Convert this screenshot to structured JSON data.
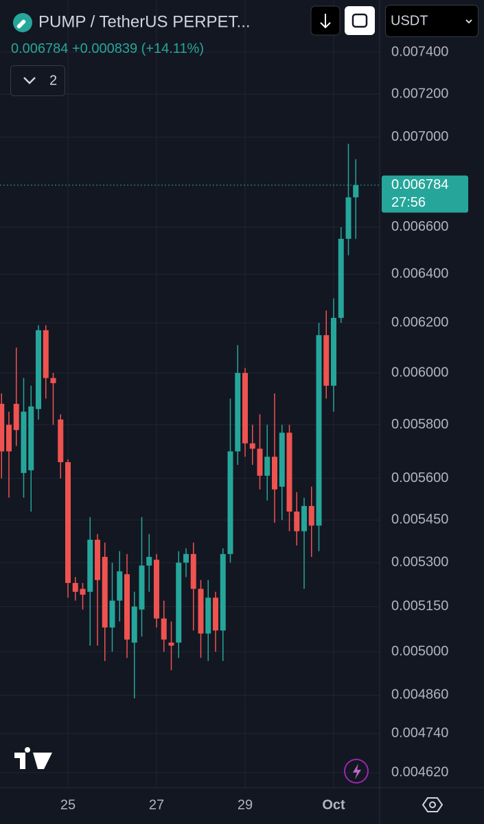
{
  "header": {
    "title": "PUMP / TetherUS PERPET...",
    "price": 0.006784,
    "change": "+0.000839",
    "change_pct": "(+14.11%)",
    "indicators": 2,
    "currency": "USDT",
    "countdown": "27:56"
  },
  "chart_data": {
    "type": "candlestick",
    "log_scale": true,
    "grid": true,
    "up_color": "#26a69a",
    "down_color": "#ef5350",
    "categories": [
      null,
      null,
      null,
      null,
      null,
      null,
      null,
      null,
      null,
      "25",
      null,
      null,
      null,
      null,
      null,
      null,
      null,
      null,
      null,
      null,
      null,
      "27",
      null,
      null,
      null,
      null,
      null,
      null,
      null,
      null,
      null,
      null,
      null,
      "29",
      null,
      null,
      null,
      null,
      null,
      null,
      null,
      null,
      null,
      null,
      null,
      "Oct",
      null,
      null,
      null
    ],
    "open": [
      0.00588,
      0.0058,
      0.00588,
      0.00562,
      0.00563,
      0.00586,
      0.00617,
      0.00598,
      0.00582,
      0.00566,
      0.00523,
      0.00521,
      0.0052,
      0.00538,
      0.00532,
      0.00508,
      0.00517,
      0.00526,
      0.00503,
      0.00514,
      0.00529,
      0.00531,
      0.00511,
      0.00503,
      0.00503,
      0.0053,
      0.00533,
      0.00521,
      0.00506,
      0.00518,
      0.00507,
      0.00533,
      0.0057,
      0.006,
      0.00573,
      0.00571,
      0.00561,
      0.00568,
      0.00557,
      0.00577,
      0.00548,
      0.00541,
      0.0055,
      0.00543,
      0.00615,
      0.00595,
      0.00622,
      0.00655,
      0.00673
    ],
    "high": [
      0.00592,
      0.00585,
      0.0061,
      0.00598,
      0.00595,
      0.00619,
      0.00619,
      0.006,
      0.00584,
      0.00567,
      0.00525,
      0.00523,
      0.00546,
      0.0054,
      0.00537,
      0.0053,
      0.00534,
      0.00533,
      0.0052,
      0.00546,
      0.0054,
      0.00533,
      0.00517,
      0.0051,
      0.00534,
      0.00535,
      0.00537,
      0.00524,
      0.00524,
      0.0052,
      0.00535,
      0.0059,
      0.00611,
      0.00602,
      0.0058,
      0.00584,
      0.0058,
      0.00592,
      0.0058,
      0.0058,
      0.00555,
      0.00553,
      0.00557,
      0.0062,
      0.00625,
      0.0063,
      0.0066,
      0.00697,
      0.0069
    ],
    "low": [
      0.0056,
      0.00553,
      0.00572,
      0.00553,
      0.00548,
      0.00582,
      0.0059,
      0.0058,
      0.0056,
      0.00518,
      0.00517,
      0.00514,
      0.00502,
      0.00502,
      0.00497,
      0.005,
      0.0051,
      0.00498,
      0.00485,
      0.00505,
      0.0052,
      0.00508,
      0.005,
      0.00494,
      0.00498,
      0.00525,
      0.00507,
      0.00498,
      0.00497,
      0.005,
      0.00497,
      0.0053,
      0.00565,
      0.00568,
      0.00565,
      0.00556,
      0.00552,
      0.00544,
      0.00545,
      0.00541,
      0.00536,
      0.00521,
      0.00532,
      0.00534,
      0.0059,
      0.00585,
      0.0062,
      0.00648,
      0.00655
    ],
    "close": [
      0.0057,
      0.0057,
      0.00578,
      0.00585,
      0.00587,
      0.00617,
      0.00598,
      0.00596,
      0.00566,
      0.00523,
      0.0052,
      0.00519,
      0.00538,
      0.00524,
      0.00508,
      0.00517,
      0.00527,
      0.00504,
      0.00515,
      0.00529,
      0.00532,
      0.00511,
      0.00504,
      0.00502,
      0.0053,
      0.00533,
      0.00521,
      0.00506,
      0.00518,
      0.00507,
      0.00533,
      0.0057,
      0.006,
      0.00573,
      0.00571,
      0.00561,
      0.00568,
      0.00556,
      0.00577,
      0.00548,
      0.00541,
      0.0055,
      0.00543,
      0.00615,
      0.00595,
      0.00622,
      0.00655,
      0.00673,
      0.006784
    ],
    "ylim": [
      0.004575,
      0.007657
    ],
    "yticks": [
      {
        "value": 0.0074,
        "label": "0.007400"
      },
      {
        "value": 0.0072,
        "label": "0.007200"
      },
      {
        "value": 0.007,
        "label": "0.007000"
      },
      {
        "value": 0.0066,
        "label": "0.006600"
      },
      {
        "value": 0.0064,
        "label": "0.006400"
      },
      {
        "value": 0.0062,
        "label": "0.006200"
      },
      {
        "value": 0.006,
        "label": "0.006000"
      },
      {
        "value": 0.0058,
        "label": "0.005800"
      },
      {
        "value": 0.0056,
        "label": "0.005600"
      },
      {
        "value": 0.00545,
        "label": "0.005450"
      },
      {
        "value": 0.0053,
        "label": "0.005300"
      },
      {
        "value": 0.00515,
        "label": "0.005150"
      },
      {
        "value": 0.005,
        "label": "0.005000"
      },
      {
        "value": 0.00486,
        "label": "0.004860"
      },
      {
        "value": 0.00474,
        "label": "0.004740"
      },
      {
        "value": 0.00462,
        "label": "0.004620"
      }
    ]
  }
}
